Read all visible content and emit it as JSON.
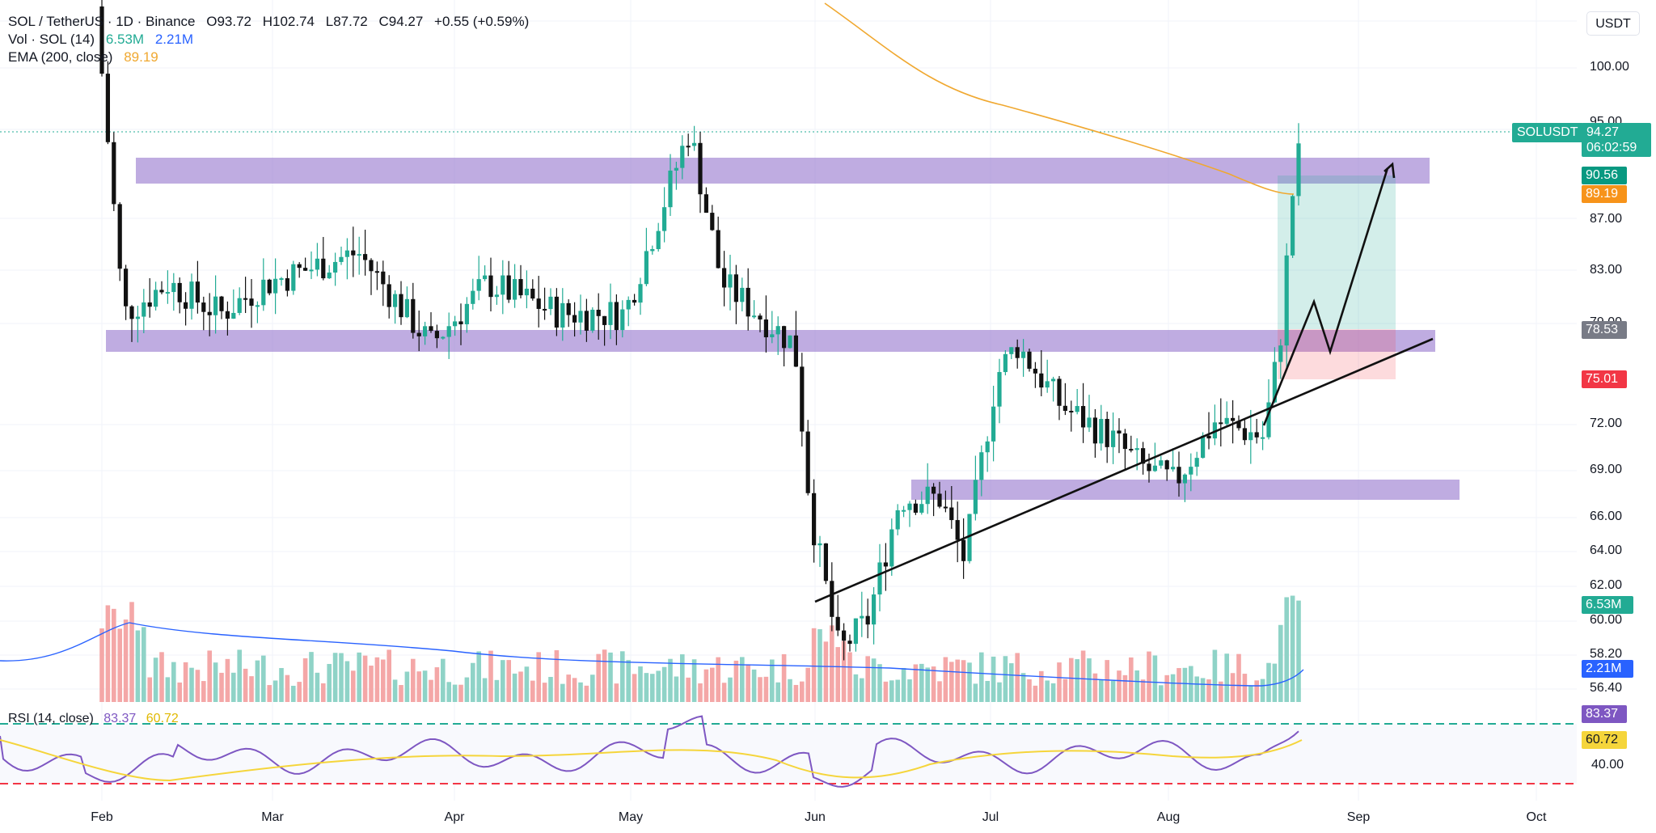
{
  "header": {
    "symbol": "SOL / TetherUS · 1D · Binance",
    "open": "O93.72",
    "high": "H102.74",
    "low": "L87.72",
    "close": "C94.27",
    "change": "+0.55 (+0.59%)",
    "vol_label": "Vol · SOL (14)",
    "vol_value_1": "6.53M",
    "vol_value_2": "2.21M",
    "ema_label": "EMA (200, close)",
    "ema_value": "89.19"
  },
  "rsi": {
    "label": "RSI (14, close)",
    "value": "83.37",
    "ma_value": "60.72"
  },
  "currency": "USDT",
  "price_axis": {
    "ticks": [
      {
        "label": "100.00",
        "value": 100
      },
      {
        "label": "95.00",
        "value": 95
      },
      {
        "label": "87.00",
        "value": 87
      },
      {
        "label": "83.00",
        "value": 83
      },
      {
        "label": "79.00",
        "value": 79
      },
      {
        "label": "72.00",
        "value": 72
      },
      {
        "label": "69.00",
        "value": 69
      },
      {
        "label": "66.00",
        "value": 66
      },
      {
        "label": "64.00",
        "value": 64
      },
      {
        "label": "62.00",
        "value": 62
      },
      {
        "label": "60.00",
        "value": 60
      },
      {
        "label": "58.20",
        "value": 58.2
      },
      {
        "label": "56.40",
        "value": 56.4
      }
    ],
    "rsi_tick": "40.00"
  },
  "price_tags": {
    "symbol": "SOLUSDT",
    "last": "94.27",
    "countdown": "06:02:59",
    "target": "90.56",
    "ema": "89.19",
    "entry": "78.53",
    "stop": "75.01",
    "vol_1": "6.53M",
    "vol_2": "2.21M",
    "rsi_1": "83.37",
    "rsi_2": "60.72"
  },
  "time_axis": [
    "Feb",
    "Mar",
    "Apr",
    "May",
    "Jun",
    "Jul",
    "Aug",
    "Sep",
    "Oct"
  ],
  "colors": {
    "up": "#22ab94",
    "down": "#111111",
    "zone": "#9575cd",
    "ema": "#f0a830",
    "vol_up": "#8fd3c7",
    "vol_down": "#f4a7a7",
    "vol_ma": "#2962ff",
    "rsi": "#7e57c2",
    "rsi_ma": "#f5d53b"
  },
  "chart_data": {
    "type": "candlestick",
    "price_range": [
      55,
      104
    ],
    "ema_200_last": 89.19,
    "support_resistance_zones": [
      [
        88.9,
        91.9
      ],
      [
        78.0,
        79.6
      ],
      [
        67.2,
        68.7
      ]
    ],
    "trade_setup": {
      "entry": 78.53,
      "stop": 75.01,
      "target": 90.56
    },
    "rsi_levels": [
      70,
      30
    ],
    "ohlc_close_path": [
      {
        "month": "Jan-end",
        "close": 104
      },
      {
        "month": "Feb",
        "close": 84
      },
      {
        "month": "Mar",
        "close": 87
      },
      {
        "month": "Apr",
        "close": 83
      },
      {
        "month": "May",
        "close": 95
      },
      {
        "month": "Jun",
        "close": 61
      },
      {
        "month": "Jul",
        "close": 82
      },
      {
        "month": "Aug",
        "close": 76
      },
      {
        "month": "Aug-end",
        "close": 94.27
      }
    ]
  }
}
